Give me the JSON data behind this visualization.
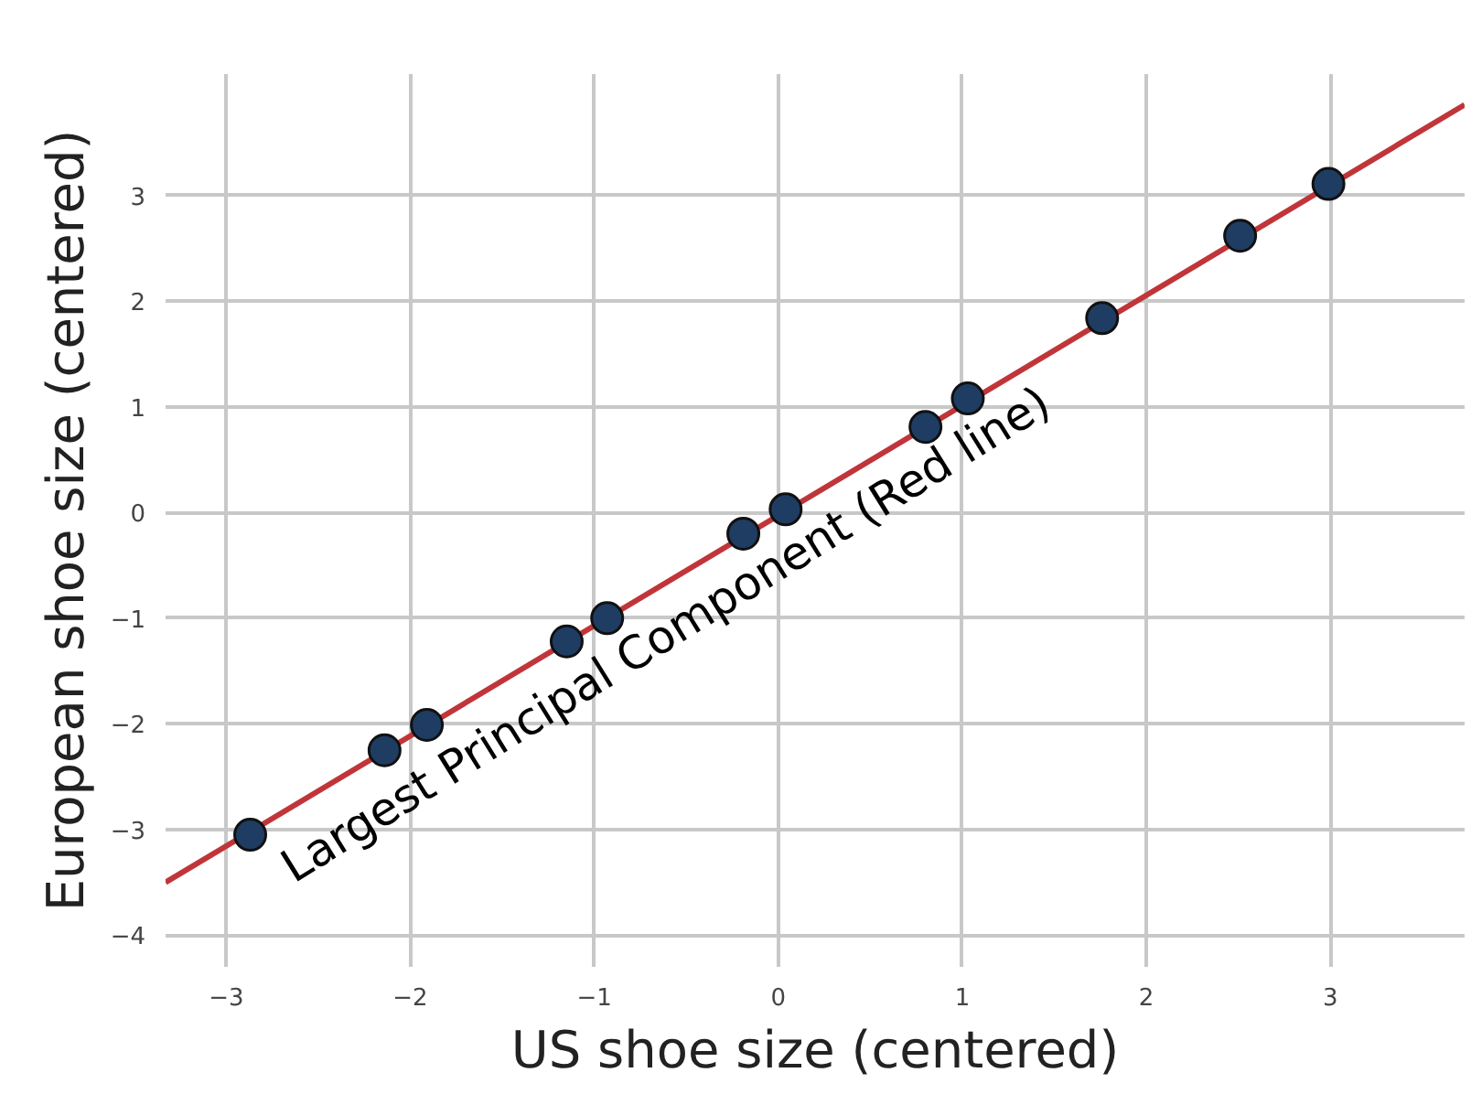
{
  "chart_data": {
    "type": "scatter",
    "xlabel": "US shoe size (centered)",
    "ylabel": "European shoe size (centered)",
    "xlim": [
      -3.33,
      3.73
    ],
    "ylim": [
      -4.3,
      4.15
    ],
    "xticks": [
      -3,
      -2,
      -1,
      0,
      1,
      2,
      3
    ],
    "yticks": [
      -4,
      -3,
      -2,
      -1,
      0,
      1,
      2,
      3
    ],
    "grid": true,
    "annotations": [
      "Largest Principal Component (Red line)"
    ],
    "series": [
      {
        "type": "line",
        "marker": "none",
        "color": "#c0353a",
        "x": [
          -3.33,
          3.73
        ],
        "values": [
          -3.5,
          3.86
        ]
      },
      {
        "marker": "circle",
        "color": "#1f3d63",
        "x": [
          -2.87,
          -2.14,
          -1.91,
          -1.15,
          -0.93,
          -0.19,
          0.04,
          0.8,
          1.03,
          1.76,
          2.51,
          2.99
        ],
        "values": [
          -3.05,
          -2.25,
          -2.01,
          -1.22,
          -1.0,
          -0.2,
          0.03,
          0.81,
          1.08,
          1.84,
          2.62,
          3.11
        ]
      }
    ]
  }
}
